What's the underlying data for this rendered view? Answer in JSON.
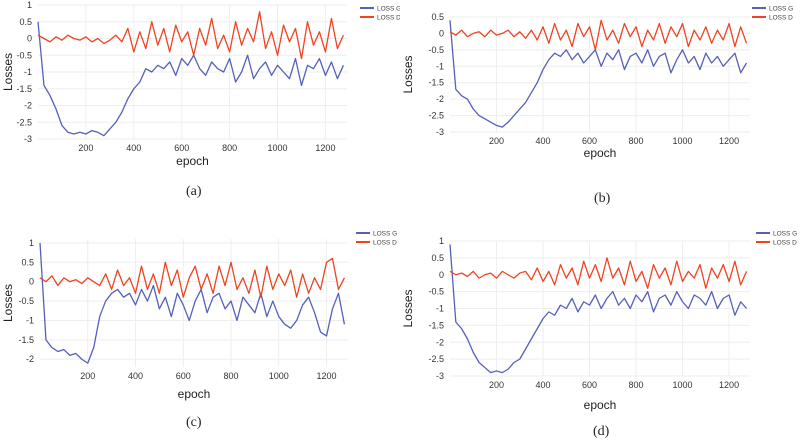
{
  "chart_data": [
    {
      "type": "line",
      "panel_label": "(a)",
      "xlabel": "epoch",
      "ylabel": "Losses",
      "xlim": [
        0,
        1290
      ],
      "ylim": [
        -3,
        1
      ],
      "xticks": [
        "200",
        "400",
        "600",
        "800",
        "1000",
        "1200"
      ],
      "yticks": [
        "1",
        "0.5",
        "0",
        "-0.5",
        "-1",
        "-1.5",
        "-2",
        "-2.5",
        "-3"
      ],
      "legend": "top-right",
      "x_step": 25,
      "series": [
        {
          "name": "LOSS G",
          "color": "#5560b8",
          "values": [
            0.5,
            -1.4,
            -1.7,
            -2.1,
            -2.6,
            -2.8,
            -2.85,
            -2.8,
            -2.85,
            -2.75,
            -2.8,
            -2.9,
            -2.7,
            -2.5,
            -2.2,
            -1.8,
            -1.5,
            -1.3,
            -0.9,
            -1.0,
            -0.8,
            -0.9,
            -0.7,
            -1.1,
            -0.6,
            -0.8,
            -0.5,
            -0.9,
            -1.1,
            -0.7,
            -0.9,
            -1.0,
            -0.6,
            -1.3,
            -1.0,
            -0.5,
            -1.2,
            -0.9,
            -0.7,
            -1.1,
            -0.8,
            -1.0,
            -1.2,
            -0.6,
            -1.4,
            -0.8,
            -0.9,
            -0.6,
            -1.1,
            -0.7,
            -1.2,
            -0.8
          ]
        },
        {
          "name": "LOSS D",
          "color": "#ee4422",
          "values": [
            0.1,
            0,
            -0.1,
            0.05,
            -0.05,
            0.1,
            0,
            -0.05,
            0.05,
            -0.1,
            0,
            -0.15,
            -0.05,
            0.1,
            -0.1,
            0.3,
            -0.4,
            0.2,
            -0.3,
            0.5,
            -0.2,
            0.3,
            -0.4,
            0.4,
            -0.1,
            0.2,
            -0.5,
            0.3,
            -0.2,
            0.6,
            -0.3,
            0.1,
            -0.4,
            0.5,
            -0.2,
            0.3,
            -0.1,
            0.8,
            -0.3,
            0.2,
            -0.5,
            0.4,
            -0.1,
            0.3,
            -0.6,
            0.5,
            -0.2,
            0.2,
            -0.4,
            0.6,
            -0.3,
            0.1
          ]
        }
      ]
    },
    {
      "type": "line",
      "panel_label": "(b)",
      "xlabel": "epoch",
      "ylabel": "Losses",
      "xlim": [
        0,
        1290
      ],
      "ylim": [
        -3,
        0.5
      ],
      "xticks": [
        "200",
        "400",
        "600",
        "800",
        "1000",
        "1200"
      ],
      "yticks": [
        "0.5",
        "0",
        "-0.5",
        "-1",
        "-1.5",
        "-2",
        "-2.5",
        "-3"
      ],
      "legend": "top-right",
      "x_step": 25,
      "series": [
        {
          "name": "LOSS G",
          "color": "#5560b8",
          "values": [
            0.4,
            -1.7,
            -1.9,
            -2.0,
            -2.3,
            -2.5,
            -2.6,
            -2.7,
            -2.8,
            -2.85,
            -2.7,
            -2.5,
            -2.3,
            -2.1,
            -1.8,
            -1.5,
            -1.1,
            -0.8,
            -0.6,
            -0.7,
            -0.5,
            -0.8,
            -0.6,
            -0.9,
            -0.7,
            -0.5,
            -1.0,
            -0.6,
            -0.8,
            -0.5,
            -1.1,
            -0.7,
            -0.6,
            -0.9,
            -0.5,
            -1.0,
            -0.7,
            -0.6,
            -1.2,
            -0.8,
            -0.5,
            -0.9,
            -0.7,
            -1.1,
            -0.6,
            -0.9,
            -0.7,
            -1.0,
            -0.8,
            -0.6,
            -1.2,
            -0.9
          ]
        },
        {
          "name": "LOSS D",
          "color": "#ee4422",
          "values": [
            0.05,
            -0.05,
            0.1,
            -0.1,
            0,
            0.05,
            -0.1,
            0.1,
            -0.05,
            0,
            0.1,
            -0.1,
            0.05,
            -0.15,
            0.1,
            -0.2,
            0.2,
            -0.3,
            0.3,
            -0.2,
            0.1,
            -0.4,
            0.3,
            -0.1,
            0.2,
            -0.5,
            0.4,
            -0.2,
            0.1,
            -0.3,
            0.3,
            -0.1,
            0.2,
            -0.4,
            0.1,
            -0.2,
            0.3,
            -0.3,
            0.2,
            -0.1,
            0.3,
            -0.4,
            0.1,
            -0.2,
            0.2,
            -0.3,
            0.1,
            -0.2,
            0.3,
            -0.4,
            0.2,
            -0.3
          ]
        }
      ]
    },
    {
      "type": "line",
      "panel_label": "(c)",
      "xlabel": "epoch",
      "ylabel": "Losses",
      "xlim": [
        0,
        1290
      ],
      "ylim": [
        -2.2,
        1.1
      ],
      "xticks": [
        "200",
        "400",
        "600",
        "800",
        "1000",
        "1200"
      ],
      "yticks": [
        "1",
        "0.5",
        "0",
        "-0.5",
        "-1",
        "-1.5",
        "-2"
      ],
      "legend": "top-right",
      "x_step": 25,
      "series": [
        {
          "name": "LOSS G",
          "color": "#5560b8",
          "values": [
            1.0,
            -1.5,
            -1.7,
            -1.8,
            -1.75,
            -1.9,
            -1.85,
            -2.0,
            -2.1,
            -1.7,
            -0.9,
            -0.5,
            -0.3,
            -0.2,
            -0.4,
            -0.3,
            -0.6,
            -0.2,
            -0.5,
            -0.1,
            -0.7,
            -0.4,
            -0.9,
            -0.3,
            -0.6,
            -1.0,
            -0.5,
            -0.2,
            -0.8,
            -0.4,
            -0.3,
            -0.7,
            -0.5,
            -1.0,
            -0.4,
            -0.6,
            -0.8,
            -0.3,
            -0.9,
            -0.5,
            -0.9,
            -1.1,
            -1.2,
            -1.0,
            -0.6,
            -0.4,
            -0.8,
            -1.3,
            -1.4,
            -0.7,
            -0.3,
            -1.1
          ]
        },
        {
          "name": "LOSS D",
          "color": "#ee4422",
          "values": [
            0.1,
            0,
            0.15,
            -0.1,
            0.1,
            0,
            0.05,
            -0.05,
            0.1,
            0,
            -0.1,
            0.2,
            -0.2,
            0.3,
            -0.1,
            0.1,
            -0.3,
            0.4,
            -0.2,
            0.2,
            -0.3,
            0.5,
            -0.1,
            0.3,
            -0.4,
            0.1,
            0.4,
            -0.2,
            0.2,
            -0.3,
            0.4,
            -0.1,
            0.5,
            -0.2,
            0.1,
            -0.3,
            0.3,
            -0.4,
            0.4,
            -0.2,
            0.2,
            -0.1,
            0.3,
            -0.4,
            0.2,
            -0.3,
            0.1,
            -0.2,
            0.5,
            0.6,
            -0.2,
            0.1
          ]
        }
      ]
    },
    {
      "type": "line",
      "panel_label": "(d)",
      "xlabel": "epoch",
      "ylabel": "Losses",
      "xlim": [
        0,
        1290
      ],
      "ylim": [
        -3,
        1
      ],
      "xticks": [
        "200",
        "400",
        "600",
        "800",
        "1000",
        "1200"
      ],
      "yticks": [
        "1",
        "0.5",
        "0",
        "-0.5",
        "-1",
        "-1.5",
        "-2",
        "-2.5",
        "-3"
      ],
      "legend": "top-right",
      "x_step": 25,
      "series": [
        {
          "name": "LOSS G",
          "color": "#5560b8",
          "values": [
            0.9,
            -1.4,
            -1.6,
            -1.9,
            -2.3,
            -2.6,
            -2.75,
            -2.9,
            -2.85,
            -2.9,
            -2.8,
            -2.6,
            -2.5,
            -2.2,
            -1.9,
            -1.6,
            -1.3,
            -1.1,
            -1.2,
            -0.9,
            -1.0,
            -0.7,
            -1.1,
            -0.8,
            -0.9,
            -0.6,
            -1.0,
            -0.7,
            -0.5,
            -0.9,
            -0.7,
            -1.0,
            -0.6,
            -0.8,
            -0.5,
            -1.1,
            -0.7,
            -0.6,
            -0.9,
            -0.5,
            -0.8,
            -1.0,
            -0.6,
            -0.7,
            -0.9,
            -0.5,
            -1.0,
            -0.7,
            -0.6,
            -1.2,
            -0.8,
            -1.0
          ]
        },
        {
          "name": "LOSS D",
          "color": "#ee4422",
          "values": [
            0.1,
            0,
            0.05,
            -0.05,
            0.1,
            -0.1,
            0,
            0.05,
            -0.1,
            0.1,
            0,
            -0.1,
            0.05,
            0.1,
            -0.15,
            0.2,
            -0.2,
            0.1,
            -0.3,
            0.3,
            -0.1,
            0.2,
            -0.3,
            0.4,
            -0.1,
            0.3,
            -0.2,
            0.5,
            -0.1,
            0.2,
            -0.3,
            0.4,
            -0.2,
            0.1,
            -0.4,
            0.3,
            -0.1,
            0.2,
            -0.3,
            0.4,
            -0.2,
            0.1,
            -0.1,
            0.3,
            -0.4,
            0.2,
            -0.1,
            0.3,
            -0.2,
            0.4,
            -0.3,
            0.1
          ]
        }
      ]
    }
  ]
}
